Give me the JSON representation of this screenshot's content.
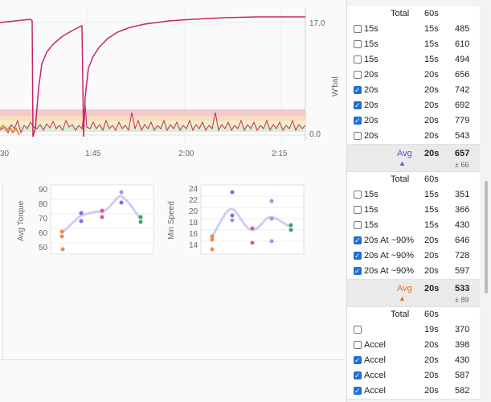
{
  "main_chart": {
    "x_ticks": [
      "30",
      "1:45",
      "2:00",
      "2:15"
    ],
    "y_ticks": [
      "17.0",
      "0.0"
    ],
    "ylabel": "W'bal"
  },
  "mini_torque": {
    "ylabel": "Avg Torque",
    "y_ticks": [
      "90",
      "80",
      "70",
      "60",
      "50"
    ]
  },
  "mini_speed": {
    "ylabel": "Min Speed",
    "y_ticks": [
      "24",
      "22",
      "20",
      "18",
      "16",
      "14"
    ]
  },
  "sections": [
    {
      "header": {
        "total": "Total",
        "dur": "60s"
      },
      "rows": [
        {
          "label": "15s",
          "dur": "15s",
          "val": "485",
          "checked": false
        },
        {
          "label": "15s",
          "dur": "15s",
          "val": "610",
          "checked": false
        },
        {
          "label": "15s",
          "dur": "15s",
          "val": "494",
          "checked": false
        },
        {
          "label": "20s",
          "dur": "20s",
          "val": "656",
          "checked": false
        },
        {
          "label": "20s",
          "dur": "20s",
          "val": "742",
          "checked": true
        },
        {
          "label": "20s",
          "dur": "20s",
          "val": "692",
          "checked": true
        },
        {
          "label": "20s",
          "dur": "20s",
          "val": "779",
          "checked": true
        },
        {
          "label": "20s",
          "dur": "20s",
          "val": "543",
          "checked": false
        }
      ],
      "avg": {
        "label": "Avg",
        "dur": "20s",
        "val": "657",
        "pm": "± 66",
        "color": "#5b4fd8"
      }
    },
    {
      "header": {
        "total": "Total",
        "dur": "60s"
      },
      "rows": [
        {
          "label": "15s",
          "dur": "15s",
          "val": "351",
          "checked": false
        },
        {
          "label": "15s",
          "dur": "15s",
          "val": "366",
          "checked": false
        },
        {
          "label": "15s",
          "dur": "15s",
          "val": "430",
          "checked": false
        },
        {
          "label": "20s At ~90%",
          "dur": "20s",
          "val": "646",
          "checked": true
        },
        {
          "label": "20s At ~90%",
          "dur": "20s",
          "val": "728",
          "checked": true
        },
        {
          "label": "20s At ~90%",
          "dur": "20s",
          "val": "597",
          "checked": true
        }
      ],
      "avg": {
        "label": "Avg",
        "dur": "20s",
        "val": "533",
        "pm": "± 89",
        "color": "#e8731c"
      }
    },
    {
      "header": {
        "total": "Total",
        "dur": "60s"
      },
      "rows": [
        {
          "label": "",
          "dur": "19s",
          "val": "370",
          "checked": false
        },
        {
          "label": "Accel",
          "dur": "20s",
          "val": "398",
          "checked": false
        },
        {
          "label": "Accel",
          "dur": "20s",
          "val": "430",
          "checked": true
        },
        {
          "label": "Accel",
          "dur": "20s",
          "val": "587",
          "checked": true
        },
        {
          "label": "Accel",
          "dur": "20s",
          "val": "582",
          "checked": true
        }
      ]
    }
  ]
}
